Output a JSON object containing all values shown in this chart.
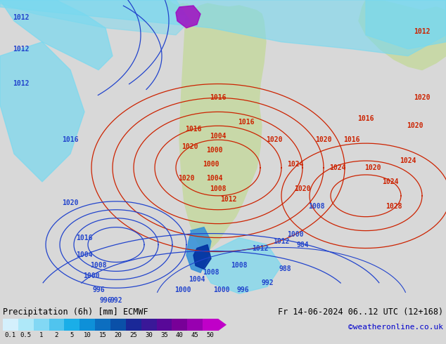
{
  "title_left": "Precipitation (6h) [mm] ECMWF",
  "title_right": "Fr 14-06-2024 06..12 UTC (12+168)",
  "credit": "©weatheronline.co.uk",
  "colorbar_labels": [
    "0.1",
    "0.5",
    "1",
    "2",
    "5",
    "10",
    "15",
    "20",
    "25",
    "30",
    "35",
    "40",
    "45",
    "50"
  ],
  "colorbar_colors": [
    "#d4f0fc",
    "#aee8f8",
    "#82d8f4",
    "#50c4ee",
    "#1aaee8",
    "#0e90d8",
    "#0c6ec0",
    "#0a50a8",
    "#1a2898",
    "#3a1898",
    "#580898",
    "#780098",
    "#9800b0",
    "#c000c8"
  ],
  "ocean_color": "#b8dff0",
  "land_color": "#c8d8a8",
  "precip_cyan": "#78d8f0",
  "precip_blue": "#3090d8",
  "precip_dark_blue": "#0030a0",
  "precip_purple": "#800090",
  "bg_color": "#b8dff0",
  "bottom_bg": "#d8d8d8",
  "label_color_blue": "#0000cc",
  "label_color_red": "#cc0000",
  "isobar_blue": "#2244cc",
  "isobar_red": "#cc2200",
  "figsize": [
    6.34,
    4.9
  ],
  "dpi": 100
}
